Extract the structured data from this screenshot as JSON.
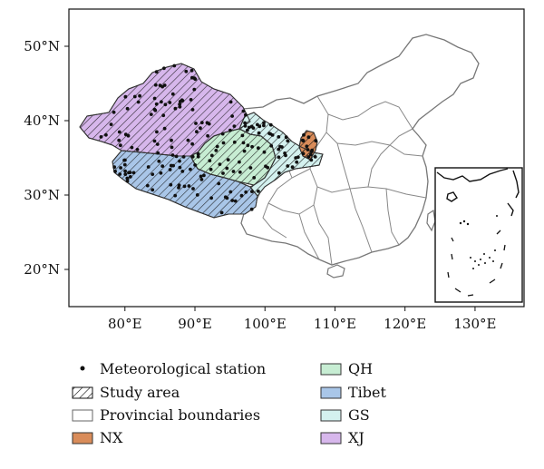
{
  "map": {
    "x_ticks": [
      "80°E",
      "90°E",
      "100°E",
      "110°E",
      "120°E",
      "130°E"
    ],
    "y_ticks": [
      "50°N",
      "40°N",
      "30°N",
      "20°N"
    ],
    "x_range": [
      72,
      137
    ],
    "y_range": [
      15,
      55
    ]
  },
  "regions": [
    {
      "key": "NX",
      "label": "NX",
      "color": "#d98c5a"
    },
    {
      "key": "QH",
      "label": "QH",
      "color": "#c7edd3"
    },
    {
      "key": "Tibet",
      "label": "Tibet",
      "color": "#a9c6e8"
    },
    {
      "key": "GS",
      "label": "GS",
      "color": "#d4f1ef"
    },
    {
      "key": "XJ",
      "label": "XJ",
      "color": "#d7b7ec"
    }
  ],
  "legend": {
    "items": [
      {
        "label": "Meteorological station",
        "symbol": "dot"
      },
      {
        "label": "Study area",
        "symbol": "hatch"
      },
      {
        "label": "Provincial boundaries",
        "symbol": "outline"
      },
      {
        "label": "NX",
        "symbol": "fill-NX"
      },
      {
        "label": "QH",
        "symbol": "fill-QH"
      },
      {
        "label": "Tibet",
        "symbol": "fill-Tibet"
      },
      {
        "label": "GS",
        "symbol": "fill-GS"
      },
      {
        "label": "XJ",
        "symbol": "fill-XJ"
      }
    ]
  }
}
